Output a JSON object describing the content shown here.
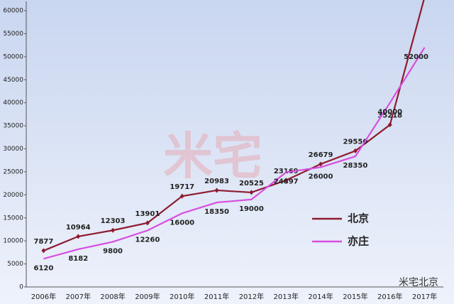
{
  "chart_data": {
    "type": "line",
    "categories": [
      "2006年",
      "2007年",
      "2008年",
      "2009年",
      "2010年",
      "2011年",
      "2012年",
      "2013年",
      "2014年",
      "2015年",
      "2016年",
      "2017年"
    ],
    "series": [
      {
        "name": "北京",
        "color": "#8e1b30",
        "values": [
          7877,
          10964,
          12303,
          13901,
          19717,
          20983,
          20525,
          23169,
          26679,
          29550,
          35218,
          62957
        ]
      },
      {
        "name": "亦庄",
        "color": "#d84ee0",
        "values": [
          6120,
          8182,
          9800,
          12260,
          16000,
          18350,
          19000,
          24897,
          26000,
          28350,
          40000,
          52000
        ]
      }
    ],
    "ylim": [
      0,
      63000
    ],
    "yticks": [
      0,
      5000,
      10000,
      15000,
      20000,
      25000,
      30000,
      35000,
      40000,
      45000,
      50000,
      55000,
      60000
    ],
    "watermark": "米宅",
    "logo": "米宅北京"
  }
}
